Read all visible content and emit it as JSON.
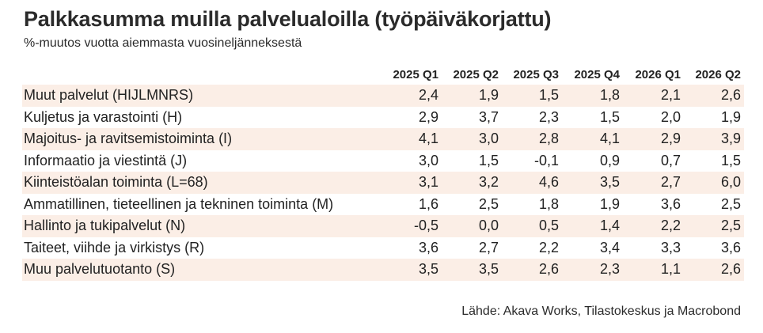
{
  "chart_data": {
    "type": "table",
    "title": "Palkkasumma muilla palvelualoilla (työpäiväkorjattu)",
    "subtitle": "%-muutos vuotta aiemmasta vuosineljänneksestä",
    "columns": [
      "2025 Q1",
      "2025 Q2",
      "2025 Q3",
      "2025 Q4",
      "2026 Q1",
      "2026 Q2"
    ],
    "rows": [
      {
        "name": "Muut palvelut (HIJLMNRS)",
        "values": [
          "2,4",
          "1,9",
          "1,5",
          "1,8",
          "2,1",
          "2,6"
        ]
      },
      {
        "name": "Kuljetus ja varastointi (H)",
        "values": [
          "2,9",
          "3,7",
          "2,3",
          "1,5",
          "2,0",
          "1,9"
        ]
      },
      {
        "name": "Majoitus- ja ravitsemistoiminta (I)",
        "values": [
          "4,1",
          "3,0",
          "2,8",
          "4,1",
          "2,9",
          "3,9"
        ]
      },
      {
        "name": "Informaatio ja viestintä (J)",
        "values": [
          "3,0",
          "1,5",
          "-0,1",
          "0,9",
          "0,7",
          "1,5"
        ]
      },
      {
        "name": "Kiinteistöalan toiminta (L=68)",
        "values": [
          "3,1",
          "3,2",
          "4,6",
          "3,5",
          "2,7",
          "6,0"
        ]
      },
      {
        "name": "Ammatillinen, tieteellinen ja tekninen toiminta (M)",
        "values": [
          "1,6",
          "2,5",
          "1,8",
          "1,9",
          "3,6",
          "2,5"
        ]
      },
      {
        "name": "Hallinto ja tukipalvelut (N)",
        "values": [
          "-0,5",
          "0,0",
          "0,5",
          "1,4",
          "2,2",
          "2,5"
        ]
      },
      {
        "name": "Taiteet, viihde ja virkistys (R)",
        "values": [
          "3,6",
          "2,7",
          "2,2",
          "3,4",
          "3,3",
          "3,6"
        ]
      },
      {
        "name": "Muu palvelutuotanto (S)",
        "values": [
          "3,5",
          "3,5",
          "2,6",
          "2,3",
          "1,1",
          "2,6"
        ]
      }
    ],
    "row_shading": "alternating",
    "shade_color": "#fbeee6"
  },
  "source": "Lähde: Akava Works, Tilastokeskus ja Macrobond"
}
